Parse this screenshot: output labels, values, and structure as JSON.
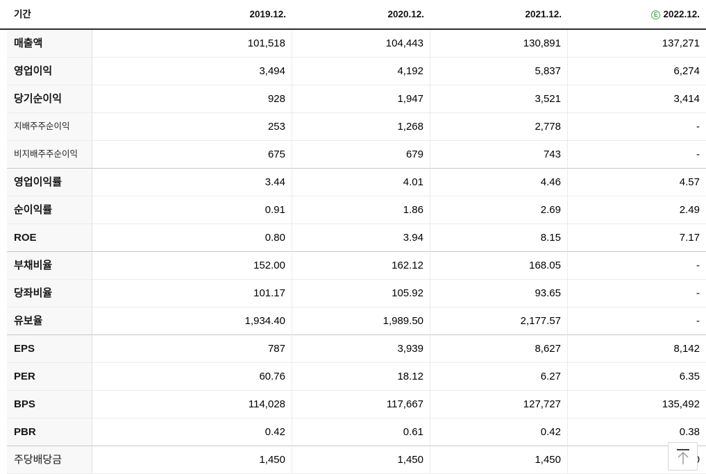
{
  "table": {
    "period_label": "기간",
    "columns": [
      {
        "label": "2019.12.",
        "estimate": false
      },
      {
        "label": "2020.12.",
        "estimate": false
      },
      {
        "label": "2021.12.",
        "estimate": false
      },
      {
        "label": "2022.12.",
        "estimate": true
      }
    ],
    "estimate_badge": "E",
    "rows": [
      {
        "label": "매출액",
        "style": "main",
        "group_start": false,
        "values": [
          "101,518",
          "104,443",
          "130,891",
          "137,271"
        ]
      },
      {
        "label": "영업이익",
        "style": "main",
        "group_start": false,
        "values": [
          "3,494",
          "4,192",
          "5,837",
          "6,274"
        ]
      },
      {
        "label": "당기순이익",
        "style": "main",
        "group_start": false,
        "values": [
          "928",
          "1,947",
          "3,521",
          "3,414"
        ]
      },
      {
        "label": "지배주주순이익",
        "style": "sub",
        "group_start": false,
        "values": [
          "253",
          "1,268",
          "2,778",
          "-"
        ]
      },
      {
        "label": "비지배주주순이익",
        "style": "sub",
        "group_start": false,
        "values": [
          "675",
          "679",
          "743",
          "-"
        ]
      },
      {
        "label": "영업이익률",
        "style": "main",
        "group_start": true,
        "values": [
          "3.44",
          "4.01",
          "4.46",
          "4.57"
        ]
      },
      {
        "label": "순이익률",
        "style": "main",
        "group_start": false,
        "values": [
          "0.91",
          "1.86",
          "2.69",
          "2.49"
        ]
      },
      {
        "label": "ROE",
        "style": "main",
        "group_start": false,
        "values": [
          "0.80",
          "3.94",
          "8.15",
          "7.17"
        ]
      },
      {
        "label": "부채비율",
        "style": "main",
        "group_start": true,
        "values": [
          "152.00",
          "162.12",
          "168.05",
          "-"
        ]
      },
      {
        "label": "당좌비율",
        "style": "main",
        "group_start": false,
        "values": [
          "101.17",
          "105.92",
          "93.65",
          "-"
        ]
      },
      {
        "label": "유보율",
        "style": "main",
        "group_start": false,
        "values": [
          "1,934.40",
          "1,989.50",
          "2,177.57",
          "-"
        ]
      },
      {
        "label": "EPS",
        "style": "main",
        "group_start": true,
        "values": [
          "787",
          "3,939",
          "8,627",
          "8,142"
        ]
      },
      {
        "label": "PER",
        "style": "main",
        "group_start": false,
        "values": [
          "60.76",
          "18.12",
          "6.27",
          "6.35"
        ]
      },
      {
        "label": "BPS",
        "style": "main",
        "group_start": false,
        "values": [
          "114,028",
          "117,667",
          "127,727",
          "135,492"
        ]
      },
      {
        "label": "PBR",
        "style": "main",
        "group_start": false,
        "values": [
          "0.42",
          "0.61",
          "0.42",
          "0.38"
        ]
      },
      {
        "label": "주당배당금",
        "style": "plain",
        "group_start": true,
        "values": [
          "1,450",
          "1,450",
          "1,450",
          "1,450"
        ]
      }
    ]
  },
  "colors": {
    "estimate_green": "#3fae49",
    "header_divider": "#2c2c2c"
  },
  "icons": {
    "scroll_top": "arrow-up-to-top"
  }
}
